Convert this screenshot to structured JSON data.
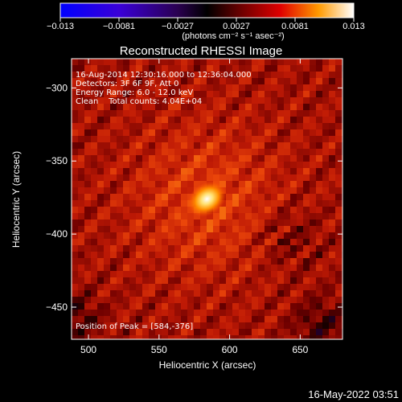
{
  "chart_data": {
    "type": "heatmap",
    "title": "Reconstructed RHESSI Image",
    "xlabel": "Heliocentric X (arcsec)",
    "ylabel": "Heliocentric Y (arcsec)",
    "xlim": [
      488,
      680
    ],
    "ylim": [
      -472,
      -280
    ],
    "xticks": [
      500,
      550,
      600,
      650
    ],
    "xtick_labels": [
      "500",
      "550",
      "600",
      "650"
    ],
    "yticks": [
      -300,
      -350,
      -400,
      -450
    ],
    "ytick_labels": [
      "−300",
      "−350",
      "−400",
      "−450"
    ],
    "colorbar": {
      "range": [
        -0.013,
        0.013
      ],
      "tick_labels": [
        "−0.013",
        "−0.0081",
        "−0.0027",
        "0.0027",
        "0.0081",
        "0.013"
      ],
      "unit_label": "(photons cm⁻² s⁻¹ asec⁻²)"
    },
    "annotations": [
      "16-Aug-2014 12:30:16.000 to 12:36:04.000",
      "Detectors: 3F 6F 9F, Att 0",
      "Energy Range: 6.0 - 12.0 keV",
      "Clean    Total counts: 4.04E+04"
    ],
    "peak_label": "Position of Peak = [584,-376]",
    "peak": {
      "x": 584,
      "y": -376,
      "value": 0.013
    },
    "colors": {
      "low": "#0000ff",
      "mid_low": "#5a0090",
      "zero": "#000000",
      "mid": "#c00000",
      "high_mid": "#ff9000",
      "high": "#ffffff"
    }
  },
  "footer_timestamp": "16-May-2022 03:51"
}
